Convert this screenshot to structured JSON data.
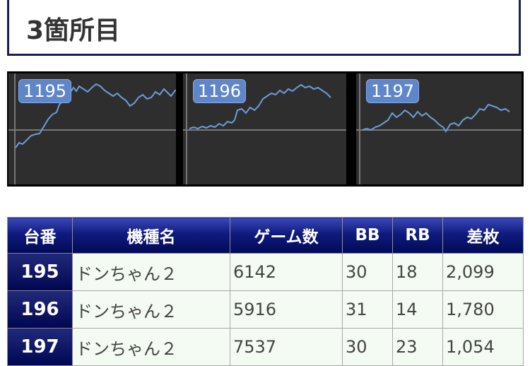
{
  "heading": {
    "title": "3箇所目"
  },
  "graphs": [
    {
      "label": "1195",
      "line_color": "#6c9cd8",
      "points": [
        [
          0,
          25
        ],
        [
          5,
          18
        ],
        [
          10,
          20
        ],
        [
          16,
          14
        ],
        [
          22,
          8
        ],
        [
          28,
          6
        ],
        [
          34,
          5
        ],
        [
          40,
          -5
        ],
        [
          46,
          -15
        ],
        [
          52,
          -22
        ],
        [
          58,
          -25
        ],
        [
          62,
          -36
        ],
        [
          66,
          -40
        ],
        [
          70,
          -52
        ],
        [
          74,
          -48
        ],
        [
          78,
          -54
        ],
        [
          82,
          -60
        ],
        [
          86,
          -55
        ],
        [
          90,
          -62
        ],
        [
          96,
          -58
        ],
        [
          102,
          -54
        ],
        [
          108,
          -60
        ],
        [
          114,
          -65
        ],
        [
          120,
          -62
        ],
        [
          126,
          -56
        ],
        [
          132,
          -52
        ],
        [
          138,
          -48
        ],
        [
          144,
          -52
        ],
        [
          150,
          -46
        ],
        [
          156,
          -42
        ],
        [
          162,
          -34
        ],
        [
          168,
          -38
        ],
        [
          174,
          -46
        ],
        [
          180,
          -50
        ],
        [
          186,
          -44
        ],
        [
          192,
          -46
        ],
        [
          198,
          -54
        ],
        [
          204,
          -50
        ],
        [
          210,
          -58
        ],
        [
          216,
          -52
        ],
        [
          220,
          -48
        ],
        [
          226,
          -56
        ],
        [
          232,
          -58
        ]
      ]
    },
    {
      "label": "1196",
      "line_color": "#6c9cd8",
      "points": [
        [
          0,
          -2
        ],
        [
          6,
          -4
        ],
        [
          12,
          -2
        ],
        [
          18,
          -5
        ],
        [
          24,
          -3
        ],
        [
          30,
          -6
        ],
        [
          36,
          -4
        ],
        [
          42,
          -9
        ],
        [
          48,
          -6
        ],
        [
          54,
          -12
        ],
        [
          60,
          -10
        ],
        [
          64,
          -14
        ],
        [
          68,
          -28
        ],
        [
          74,
          -30
        ],
        [
          80,
          -24
        ],
        [
          86,
          -32
        ],
        [
          92,
          -28
        ],
        [
          98,
          -34
        ],
        [
          104,
          -44
        ],
        [
          110,
          -48
        ],
        [
          116,
          -52
        ],
        [
          122,
          -50
        ],
        [
          128,
          -56
        ],
        [
          134,
          -52
        ],
        [
          140,
          -58
        ],
        [
          146,
          -55
        ],
        [
          152,
          -60
        ],
        [
          158,
          -64
        ],
        [
          164,
          -60
        ],
        [
          170,
          -62
        ],
        [
          176,
          -58
        ],
        [
          182,
          -60
        ],
        [
          188,
          -56
        ],
        [
          194,
          -52
        ],
        [
          200,
          -46
        ]
      ]
    },
    {
      "label": "1197",
      "line_color": "#6c9cd8",
      "points": [
        [
          0,
          0
        ],
        [
          6,
          -2
        ],
        [
          12,
          0
        ],
        [
          18,
          -4
        ],
        [
          24,
          -6
        ],
        [
          30,
          -10
        ],
        [
          36,
          -14
        ],
        [
          42,
          -24
        ],
        [
          48,
          -18
        ],
        [
          54,
          -22
        ],
        [
          60,
          -28
        ],
        [
          66,
          -24
        ],
        [
          72,
          -18
        ],
        [
          78,
          -26
        ],
        [
          84,
          -20
        ],
        [
          90,
          -24
        ],
        [
          96,
          -18
        ],
        [
          102,
          -14
        ],
        [
          108,
          -8
        ],
        [
          114,
          -4
        ],
        [
          118,
          2
        ],
        [
          124,
          -8
        ],
        [
          130,
          -10
        ],
        [
          136,
          -6
        ],
        [
          142,
          -14
        ],
        [
          148,
          -18
        ],
        [
          154,
          -16
        ],
        [
          160,
          -22
        ],
        [
          166,
          -30
        ],
        [
          172,
          -28
        ],
        [
          178,
          -36
        ],
        [
          184,
          -34
        ],
        [
          190,
          -32
        ],
        [
          196,
          -28
        ],
        [
          202,
          -30
        ],
        [
          208,
          -26
        ]
      ]
    }
  ],
  "table": {
    "headers": [
      "台番",
      "機種名",
      "ゲーム数",
      "BB",
      "RB",
      "差枚"
    ],
    "rows": [
      {
        "num": "195",
        "name": "ドンちゃん２",
        "games": "6142",
        "bb": "30",
        "rb": "18",
        "diff": "2,099"
      },
      {
        "num": "196",
        "name": "ドンちゃん２",
        "games": "5916",
        "bb": "31",
        "rb": "14",
        "diff": "1,780"
      },
      {
        "num": "197",
        "name": "ドンちゃん２",
        "games": "7537",
        "bb": "30",
        "rb": "23",
        "diff": "1,054"
      }
    ]
  }
}
